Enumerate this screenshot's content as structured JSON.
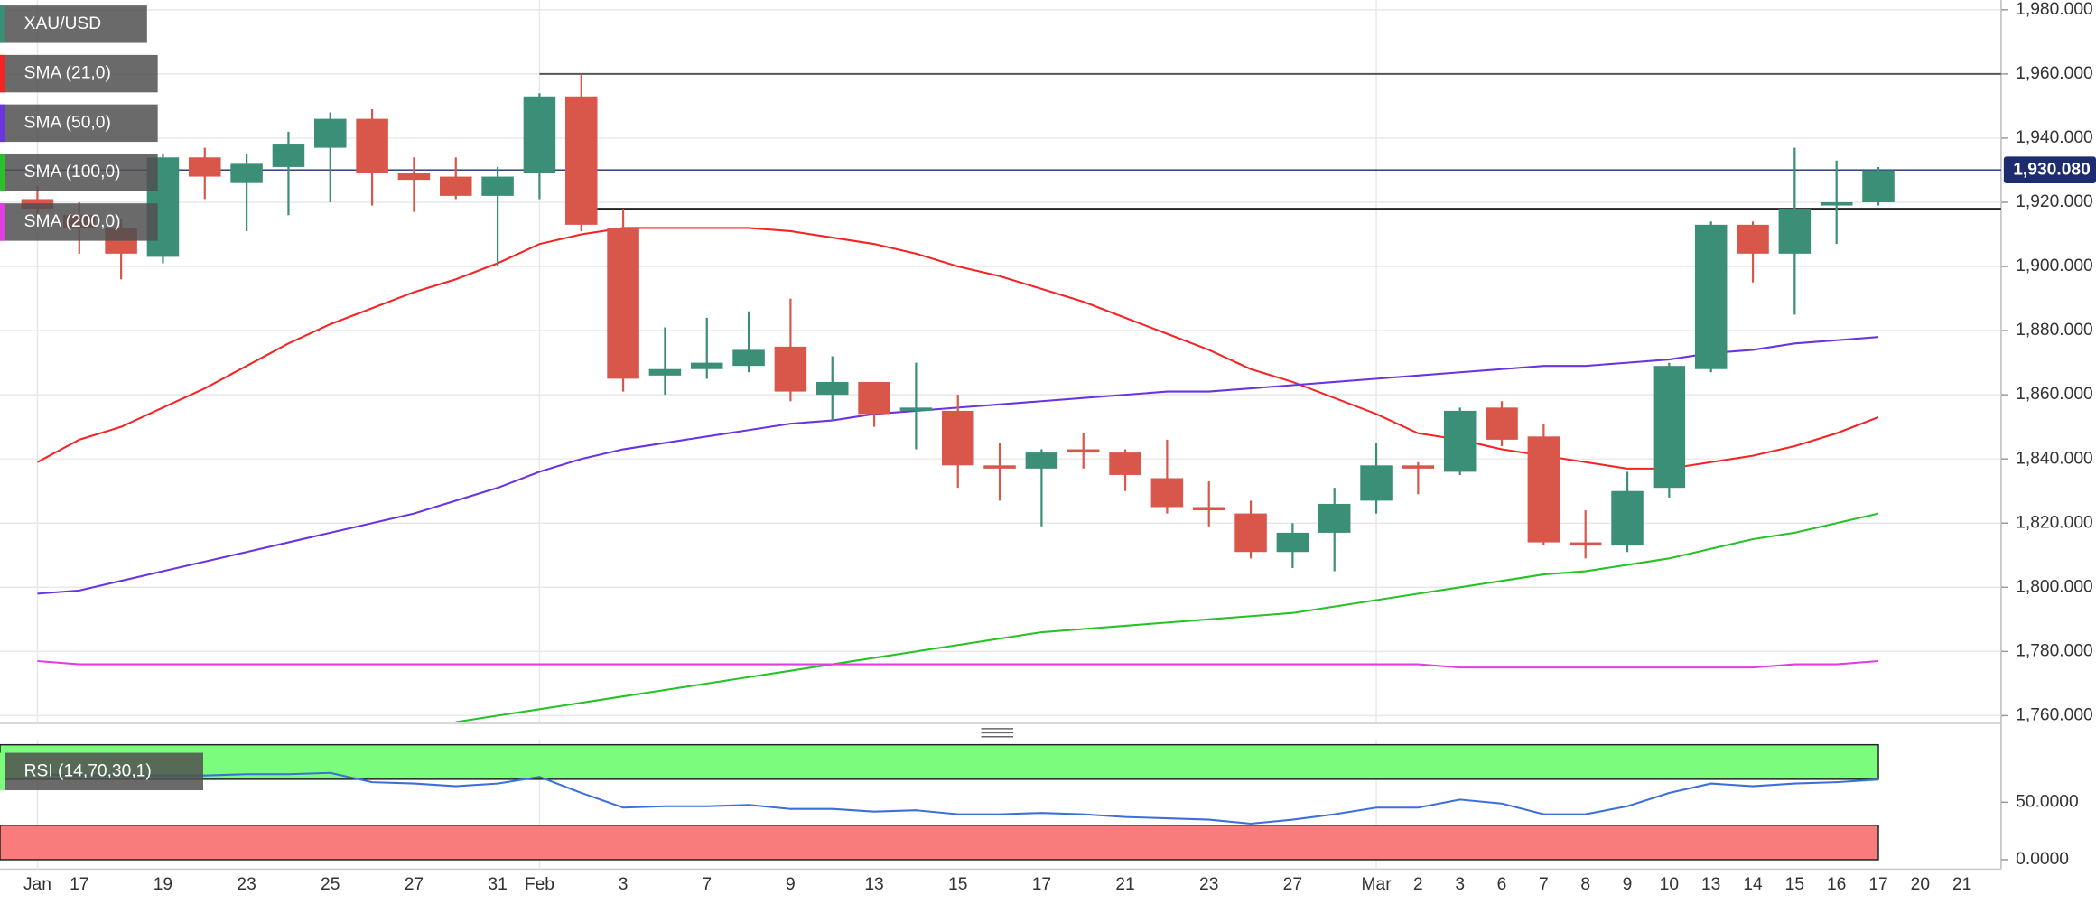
{
  "chart_data": [
    {
      "type": "candlestick",
      "categories": [
        "Jan",
        "17",
        null,
        "19",
        null,
        "23",
        null,
        "25",
        null,
        "27",
        null,
        "31",
        "Feb",
        null,
        "3",
        null,
        "7",
        null,
        "9",
        null,
        "13",
        null,
        "15",
        null,
        "17",
        null,
        "21",
        null,
        "23",
        null,
        "27",
        null,
        "Mar",
        "2",
        "3",
        "6",
        "7",
        "8",
        "9",
        "10",
        "13",
        "14",
        "15",
        "16",
        "17",
        "20",
        "21"
      ],
      "series": [
        {
          "name": "XAU/USD",
          "up_color": "#3b8f77",
          "down_color": "#d8574a",
          "open": [
            1921,
            1916,
            1912,
            1903,
            1934,
            1926,
            1931,
            1937,
            1946,
            1929,
            1928,
            1922,
            1929,
            1953,
            1912,
            1866,
            1868,
            1869,
            1875,
            1860,
            1864,
            1855,
            1855,
            1838,
            1837,
            1843,
            1842,
            1834,
            1825,
            1823,
            1811,
            1817,
            1827,
            1838,
            1836,
            1856,
            1847,
            1814,
            1813,
            1831,
            1868,
            1913,
            1904,
            1919,
            1920,
            null,
            null
          ],
          "high": [
            1925,
            1920,
            1915,
            1935,
            1937,
            1935,
            1942,
            1948,
            1949,
            1934,
            1934,
            1931,
            1954,
            1960,
            1918,
            1881,
            1884,
            1886,
            1890,
            1872,
            1864,
            1870,
            1860,
            1845,
            1843,
            1848,
            1843,
            1846,
            1833,
            1827,
            1820,
            1831,
            1845,
            1839,
            1856,
            1858,
            1851,
            1824,
            1836,
            1870,
            1914,
            1914,
            1937,
            1933,
            1931,
            null,
            null
          ],
          "low": [
            1915,
            1904,
            1896,
            1901,
            1921,
            1911,
            1916,
            1920,
            1919,
            1917,
            1921,
            1900,
            1921,
            1911,
            1861,
            1860,
            1865,
            1867,
            1858,
            1852,
            1850,
            1843,
            1831,
            1827,
            1819,
            1837,
            1830,
            1823,
            1819,
            1809,
            1806,
            1805,
            1823,
            1829,
            1835,
            1844,
            1813,
            1809,
            1811,
            1828,
            1867,
            1895,
            1885,
            1907,
            1919,
            null,
            null
          ],
          "close": [
            1918,
            1912,
            1904,
            1934,
            1928,
            1932,
            1938,
            1946,
            1929,
            1927,
            1922,
            1928,
            1953,
            1913,
            1865,
            1868,
            1870,
            1874,
            1861,
            1864,
            1854,
            1856,
            1838,
            1837,
            1842,
            1842,
            1835,
            1825,
            1824,
            1811,
            1817,
            1826,
            1838,
            1837,
            1855,
            1846,
            1814,
            1813,
            1830,
            1869,
            1913,
            1904,
            1918,
            1920,
            1930,
            null,
            null
          ]
        }
      ],
      "overlays": [
        {
          "name": "SMA (21,0)",
          "color": "#f52424",
          "values": [
            1839,
            1846,
            1850,
            1856,
            1862,
            1869,
            1876,
            1882,
            1887,
            1892,
            1896,
            1901,
            1907,
            1910,
            1912,
            1912,
            1912,
            1912,
            1911,
            1909,
            1907,
            1904,
            1900,
            1897,
            1893,
            1889,
            1884,
            1879,
            1874,
            1868,
            1864,
            1859,
            1854,
            1848,
            1846,
            1843,
            1841,
            1839,
            1837,
            1837,
            1839,
            1841,
            1844,
            1848,
            1853,
            null,
            null
          ]
        },
        {
          "name": "SMA (50,0)",
          "color": "#6a35e0",
          "values": [
            1798,
            1799,
            1802,
            1805,
            1808,
            1811,
            1814,
            1817,
            1820,
            1823,
            1827,
            1831,
            1836,
            1840,
            1843,
            1845,
            1847,
            1849,
            1851,
            1852,
            1854,
            1855,
            1856,
            1857,
            1858,
            1859,
            1860,
            1861,
            1861,
            1862,
            1863,
            1864,
            1865,
            1866,
            1867,
            1868,
            1869,
            1869,
            1870,
            1871,
            1873,
            1874,
            1876,
            1877,
            1878,
            null,
            null
          ]
        },
        {
          "name": "SMA (100,0)",
          "color": "#27c227",
          "values": [
            null,
            null,
            null,
            null,
            null,
            null,
            null,
            null,
            null,
            null,
            1758,
            1760,
            1762,
            1764,
            1766,
            1768,
            1770,
            1772,
            1774,
            1776,
            1778,
            1780,
            1782,
            1784,
            1786,
            1787,
            1788,
            1789,
            1790,
            1791,
            1792,
            1794,
            1796,
            1798,
            1800,
            1802,
            1804,
            1805,
            1807,
            1809,
            1812,
            1815,
            1817,
            1820,
            1823,
            null,
            null
          ]
        },
        {
          "name": "SMA (200,0)",
          "color": "#e03ee0",
          "values": [
            1777,
            1776,
            1776,
            1776,
            1776,
            1776,
            1776,
            1776,
            1776,
            1776,
            1776,
            1776,
            1776,
            1776,
            1776,
            1776,
            1776,
            1776,
            1776,
            1776,
            1776,
            1776,
            1776,
            1776,
            1776,
            1776,
            1776,
            1776,
            1776,
            1776,
            1776,
            1776,
            1776,
            1776,
            1775,
            1775,
            1775,
            1775,
            1775,
            1775,
            1775,
            1775,
            1776,
            1776,
            1777,
            null,
            null
          ]
        }
      ],
      "hlines": [
        {
          "value": 1960,
          "color": "#555555",
          "from": 12
        },
        {
          "value": 1918,
          "color": "#222222",
          "from": 13
        }
      ],
      "last_price": {
        "value": 1930.08,
        "label": "1,930.080",
        "color": "#1c2c6e"
      },
      "ylim": [
        1758,
        1983
      ],
      "yticks": [
        {
          "value": 1760,
          "label": "1,760.000"
        },
        {
          "value": 1780,
          "label": "1,780.000"
        },
        {
          "value": 1800,
          "label": "1,800.000"
        },
        {
          "value": 1820,
          "label": "1,820.000"
        },
        {
          "value": 1840,
          "label": "1,840.000"
        },
        {
          "value": 1860,
          "label": "1,860.000"
        },
        {
          "value": 1880,
          "label": "1,880.000"
        },
        {
          "value": 1900,
          "label": "1,900.000"
        },
        {
          "value": 1920,
          "label": "1,920.000"
        },
        {
          "value": 1940,
          "label": "1,940.000"
        },
        {
          "value": 1960,
          "label": "1,960.000"
        },
        {
          "value": 1980,
          "label": "1,980.000"
        }
      ],
      "grid": true
    },
    {
      "type": "line",
      "series": [
        {
          "name": "RSI (14,70,30,1)",
          "color": "#3d6fd8",
          "values": [
            74.4,
            73.3,
            73.3,
            73.3,
            73.3,
            74.4,
            74.4,
            75.6,
            67.4,
            66.3,
            64,
            66.3,
            72.1,
            58.1,
            45.3,
            46.5,
            46.5,
            47.7,
            44.2,
            44.2,
            41.9,
            43,
            39.5,
            39.5,
            40.7,
            39.5,
            37.2,
            36,
            34.9,
            31.4,
            34.9,
            39.5,
            45.3,
            45.3,
            52.3,
            48.8,
            39.5,
            39.5,
            46.5,
            58.1,
            66.3,
            64,
            66.3,
            67.4,
            69.8,
            null,
            null
          ]
        }
      ],
      "bands": [
        {
          "from": 70,
          "to": 100,
          "color": "#7cfc7c"
        },
        {
          "from": 0,
          "to": 30,
          "color": "#f87c7c"
        }
      ],
      "ylim": [
        0,
        100
      ],
      "yticks": [
        {
          "value": 50,
          "label": "50.0000"
        },
        {
          "value": 0,
          "label": "0.0000"
        }
      ]
    }
  ]
}
